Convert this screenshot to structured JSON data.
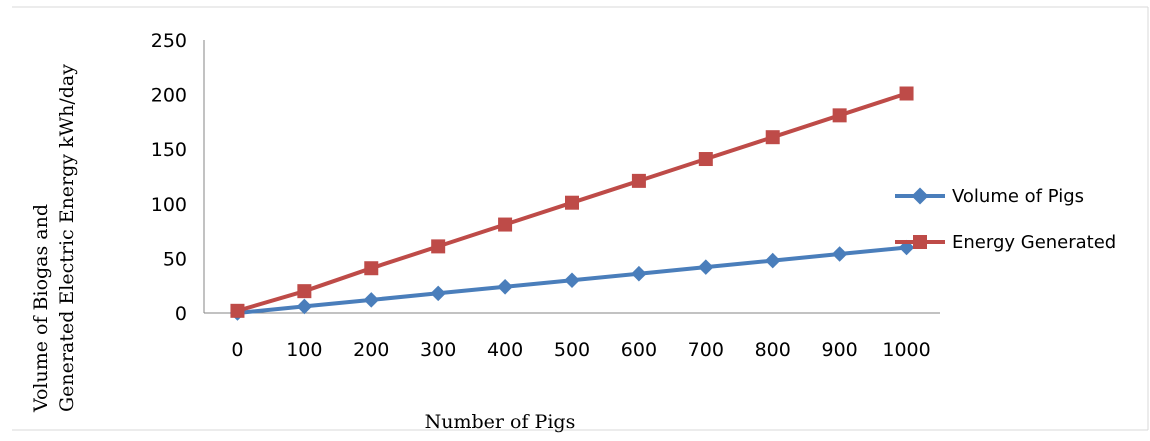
{
  "chart_data": {
    "type": "line",
    "xlabel": "Number of Pigs",
    "ylabel_lines": [
      "Volume of Biogas and",
      "Generated Electric Energy kWh/day"
    ],
    "categories": [
      "0",
      "100",
      "200",
      "300",
      "400",
      "500",
      "600",
      "700",
      "800",
      "900",
      "1000"
    ],
    "ylim": [
      0,
      250
    ],
    "yticks": [
      "0",
      "50",
      "100",
      "150",
      "200",
      "250"
    ],
    "grid": false,
    "legend_position": "right",
    "series": [
      {
        "name": "Volume of Pigs",
        "color": "#4a7ebb",
        "marker": "diamond",
        "values": [
          0,
          6,
          12,
          18,
          24,
          30,
          36,
          42,
          48,
          54,
          60
        ]
      },
      {
        "name": "Energy Generated",
        "color": "#be4b48",
        "marker": "square",
        "values": [
          2,
          20,
          41,
          61,
          81,
          101,
          121,
          141,
          161,
          181,
          201
        ]
      }
    ]
  }
}
